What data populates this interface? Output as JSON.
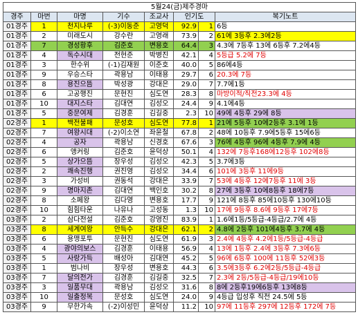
{
  "table": {
    "title": "5월24(금)제주경마",
    "header": [
      "경주",
      "마번",
      "마명",
      "기수",
      "조교사",
      "인기도",
      "복기노트"
    ],
    "rows": [
      [
        "01경주",
        "1",
        "천지나루",
        "(-3)이동준",
        "고영덕",
        "92.9",
        "1",
        "6등"
      ],
      [
        "01경주",
        "2",
        "미래도시",
        "강수란",
        "고영래",
        "73.9",
        "2",
        "61에 3등후 2.3에2등"
      ],
      [
        "01경주",
        "7",
        "경성황후",
        "김준호",
        "변용호",
        "64.4",
        "3",
        "4.3에 7등후 13에 6등후 7.2에4등"
      ],
      [
        "01경주",
        "4",
        "독수시대",
        "전현준",
        "박병진",
        "42.1",
        "4",
        "5등급 5.2에 7등"
      ],
      [
        "01경주",
        "3",
        "한수위",
        "(-1)김재원",
        "이준호",
        "40.0",
        "5",
        "86에4등"
      ],
      [
        "01경주",
        "9",
        "우승스타",
        "곽용남",
        "이태용",
        "29.7",
        "6",
        "20.3에 7등"
      ],
      [
        "01경주",
        "8",
        "용진으뜸",
        "박성광",
        "강대은",
        "29.0",
        "7",
        "7.7에1등"
      ],
      [
        "01경주",
        "6",
        "고공행진",
        "문현진",
        "심도연",
        "28.3",
        "8",
        "마방이적/직전23.3에 4등"
      ],
      [
        "01경주",
        "10",
        "대지스타",
        "김대연",
        "김성오",
        "24.4",
        "9",
        "4.1에4등"
      ],
      [
        "01경주",
        "5",
        "중문여제",
        "김경훈",
        "김길중",
        "2.3",
        "10",
        "49에 4등후 29에 8등"
      ],
      [
        "02경주",
        "1",
        "백전불패",
        "문성호",
        "심도연",
        "77.8",
        "1",
        "21에 5등후 10에2등후 3.1에 1등"
      ],
      [
        "02경주",
        "7",
        "여왕시대",
        "(-2)이소연",
        "좌윤철",
        "67.8",
        "2",
        "48에 10등후 7.9에5등후 15에6등"
      ],
      [
        "02경주",
        "4",
        "공자",
        "곽용남",
        "신경호",
        "67.6",
        "3",
        "76에 4등후 96에 4등후 7.9에 4등"
      ],
      [
        "02경주",
        "6",
        "앵커링",
        "김준호",
        "윤덕상",
        "50.1",
        "4",
        "132에 7등후168에12등후 102에8등"
      ],
      [
        "02경주",
        "5",
        "상가으뜸",
        "장우성",
        "김성오",
        "42.3",
        "5",
        "3.7에3등"
      ],
      [
        "02경주",
        "2",
        "쾌속진행",
        "권진영",
        "김성오",
        "34.4",
        "6",
        "101에 3등후 11에9등"
      ],
      [
        "02경주",
        "3",
        "가성비",
        "권동석",
        "강대은",
        "33.9",
        "7",
        "53에 4등후 12에7등후 11에 3등"
      ],
      [
        "02경주",
        "9",
        "명마지존",
        "김대연",
        "백인호",
        "30.2",
        "8",
        "27에 3등후 10에8등후 18에7등"
      ],
      [
        "02경주",
        "8",
        "소페왕",
        "김다영",
        "변용호",
        "17.7",
        "9",
        "121에 8등후 85에10등후 130에10등"
      ],
      [
        "02경주",
        "10",
        "힘힘타운",
        "나유나",
        "고성동",
        "1.3",
        "10",
        "17에 9등후 8.6에 9등후 17에7등"
      ],
      [
        "03경주",
        "2",
        "삼다전설",
        "김준호",
        "강영진",
        "83.9",
        "1",
        "1.6에1등/5등급-4등급/2.7에 4등"
      ],
      [
        "03경주",
        "8",
        "세계여왕",
        "안득수",
        "강대은",
        "62.1",
        "2",
        "4.8에 2등후 101에4등후 3.7에 4등"
      ],
      [
        "03경주",
        "6",
        "용맹포투",
        "문현진",
        "심도연",
        "61.9",
        "3",
        "2.4에 4등후 4.2에1등/5등급-4등급"
      ],
      [
        "03경주",
        "4",
        "광야의보스",
        "김경훈",
        "이태용",
        "56.9",
        "4",
        "13에 1등후 2.4에 3등후 7.3에6등"
      ],
      [
        "03경주",
        "5",
        "사랑가득",
        "배성아",
        "김대연",
        "45.2",
        "5",
        "96에 6등후 100에 11등후 52에3등"
      ],
      [
        "03경주",
        "1",
        "범나비",
        "장우성",
        "변용호",
        "44.3",
        "6",
        "3.5에3등후 6.2에2등/5등급-4등급"
      ],
      [
        "03경주",
        "7",
        "달의전가",
        "김경훈",
        "김길중",
        "32.5",
        "7",
        "2.3에 2등/5등급-4등급/19에10등"
      ],
      [
        "03경주",
        "3",
        "일품무대",
        "곽용남",
        "김성오",
        "31.6",
        "8",
        "8에 2등후19에6등후 13에8등"
      ],
      [
        "03경주",
        "10",
        "일출정복",
        "문성호",
        "심도연",
        "24.0",
        "9",
        "4등급 입성후 직전 24.5에 5등"
      ],
      [
        "03경주",
        "9",
        "무한가속",
        "(-2)이성민",
        "윤덕상",
        "11.2",
        "10",
        "97에 11등후 297에 12등후 172에 7등"
      ]
    ]
  }
}
